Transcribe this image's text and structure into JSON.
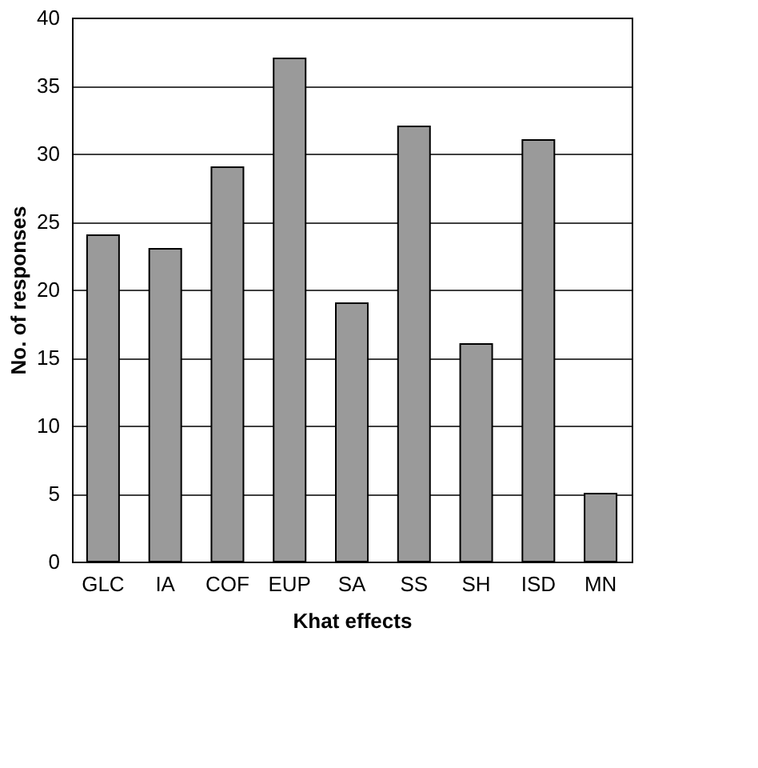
{
  "chart_data": {
    "type": "bar",
    "xlabel": "Khat effects",
    "ylabel": "No. of responses",
    "categories": [
      "GLC",
      "IA",
      "COF",
      "EUP",
      "SA",
      "SS",
      "SH",
      "ISD",
      "MN"
    ],
    "values": [
      24,
      23,
      29,
      37,
      19,
      32,
      16,
      31,
      5
    ],
    "color": "#9a9a9a",
    "ylim": [
      0,
      40
    ],
    "yticks": [
      0,
      5,
      10,
      15,
      20,
      25,
      30,
      35,
      40
    ],
    "grid": "y"
  }
}
